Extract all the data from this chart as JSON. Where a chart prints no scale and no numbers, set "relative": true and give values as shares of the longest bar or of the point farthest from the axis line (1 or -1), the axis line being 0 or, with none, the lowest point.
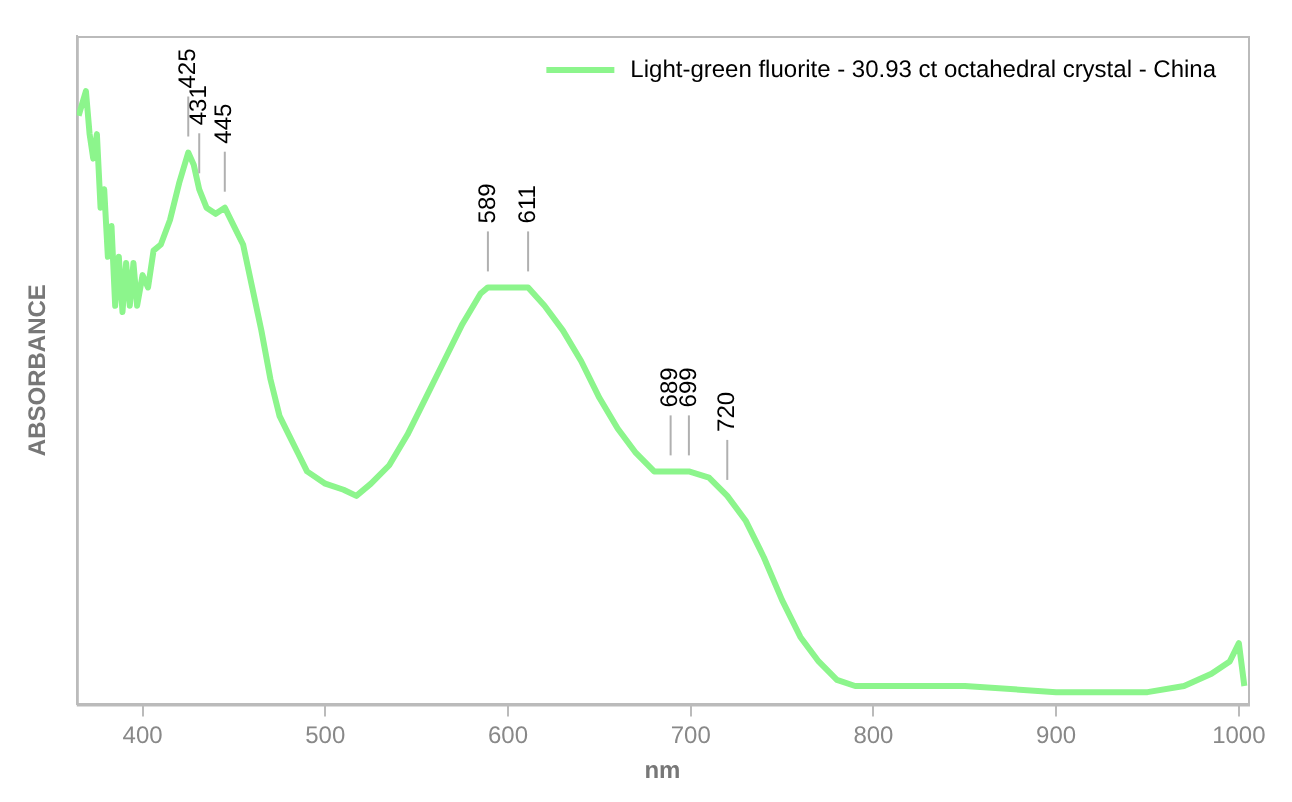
{
  "chart_data": {
    "type": "line",
    "xlabel": "nm",
    "ylabel": "ABSORBANCE",
    "relative": true,
    "xlim": [
      364,
      1005
    ],
    "xticks": [
      400,
      500,
      600,
      700,
      800,
      900,
      1000
    ],
    "grid": false,
    "legend": "top right",
    "marker": "none",
    "line_style": "solid",
    "series": [
      {
        "name": "Light-green fluorite - 30.93 ct octahedral crystal - China",
        "color": "#8cf58c",
        "x": [
          365,
          367,
          369,
          371,
          373,
          375,
          377,
          379,
          381,
          383,
          385,
          387,
          389,
          391,
          393,
          395,
          397,
          400,
          403,
          406,
          410,
          415,
          420,
          425,
          428,
          431,
          435,
          440,
          445,
          450,
          455,
          460,
          465,
          470,
          475,
          480,
          485,
          490,
          500,
          510,
          517,
          525,
          535,
          545,
          555,
          565,
          575,
          585,
          589,
          600,
          611,
          620,
          630,
          640,
          650,
          660,
          670,
          680,
          689,
          699,
          710,
          720,
          730,
          740,
          750,
          760,
          770,
          780,
          790,
          800,
          850,
          900,
          930,
          950,
          970,
          985,
          995,
          1000,
          1003
        ],
        "values": [
          0.96,
          0.98,
          1.0,
          0.93,
          0.89,
          0.93,
          0.81,
          0.84,
          0.73,
          0.78,
          0.65,
          0.73,
          0.64,
          0.72,
          0.65,
          0.72,
          0.65,
          0.7,
          0.68,
          0.74,
          0.75,
          0.79,
          0.85,
          0.9,
          0.88,
          0.84,
          0.81,
          0.8,
          0.81,
          0.78,
          0.75,
          0.68,
          0.61,
          0.53,
          0.47,
          0.44,
          0.41,
          0.38,
          0.36,
          0.35,
          0.34,
          0.36,
          0.39,
          0.44,
          0.5,
          0.56,
          0.62,
          0.67,
          0.68,
          0.68,
          0.68,
          0.65,
          0.61,
          0.56,
          0.5,
          0.45,
          0.41,
          0.38,
          0.38,
          0.38,
          0.37,
          0.34,
          0.3,
          0.24,
          0.17,
          0.11,
          0.07,
          0.04,
          0.03,
          0.03,
          0.03,
          0.02,
          0.02,
          0.02,
          0.03,
          0.05,
          0.07,
          0.1,
          0.03
        ]
      }
    ],
    "annotations": [
      {
        "text": "425",
        "x": 425,
        "y": 0.9
      },
      {
        "text": "431",
        "x": 431,
        "y": 0.84
      },
      {
        "text": "445",
        "x": 445,
        "y": 0.81
      },
      {
        "text": "589",
        "x": 589,
        "y": 0.68
      },
      {
        "text": "611",
        "x": 611,
        "y": 0.68
      },
      {
        "text": "689",
        "x": 689,
        "y": 0.38
      },
      {
        "text": "699",
        "x": 699,
        "y": 0.38
      },
      {
        "text": "720",
        "x": 720,
        "y": 0.34
      }
    ]
  }
}
